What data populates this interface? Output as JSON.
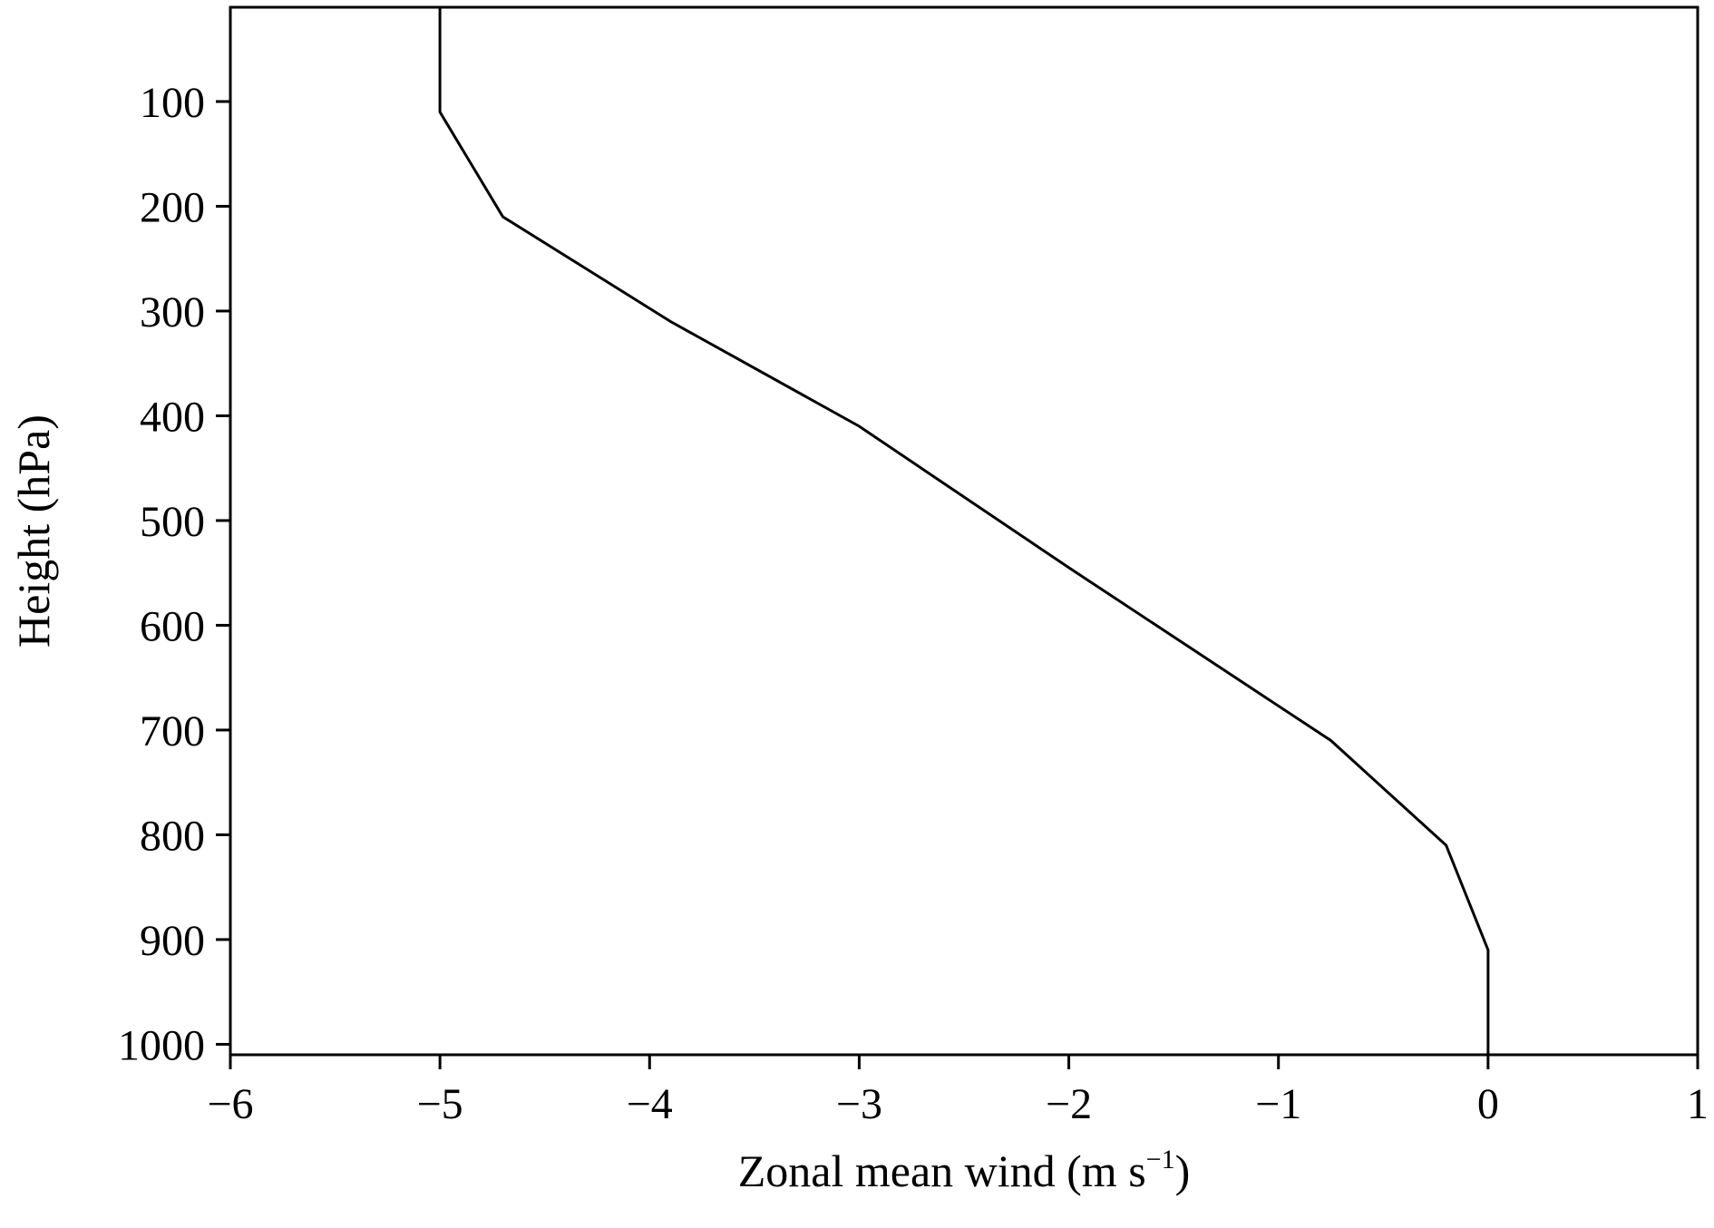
{
  "chart_data": {
    "type": "line",
    "title": "",
    "xlabel": "Zonal mean wind (m s",
    "xlabel_superscript": "−1",
    "xlabel_suffix": ")",
    "ylabel": "Height (hPa)",
    "xlim": [
      -6,
      1
    ],
    "ylim": [
      10,
      1010
    ],
    "y_inverted": true,
    "grid": false,
    "xticks": [
      -6,
      -5,
      -4,
      -3,
      -2,
      -1,
      0,
      1
    ],
    "xtick_labels": [
      "−6",
      "−5",
      "−4",
      "−3",
      "−2",
      "−1",
      "0",
      "1"
    ],
    "yticks": [
      100,
      200,
      300,
      400,
      500,
      600,
      700,
      800,
      900,
      1000
    ],
    "ytick_labels": [
      "100",
      "200",
      "300",
      "400",
      "500",
      "600",
      "700",
      "800",
      "900",
      "1000"
    ],
    "series": [
      {
        "line_color": "#000000",
        "x": [
          -5.0,
          -5.0,
          -4.7,
          -3.9,
          -3.0,
          -2.0,
          -0.75,
          -0.2,
          0.0,
          0.0
        ],
        "y": [
          10,
          110,
          210,
          310,
          410,
          545,
          710,
          810,
          910,
          1010
        ]
      }
    ]
  }
}
